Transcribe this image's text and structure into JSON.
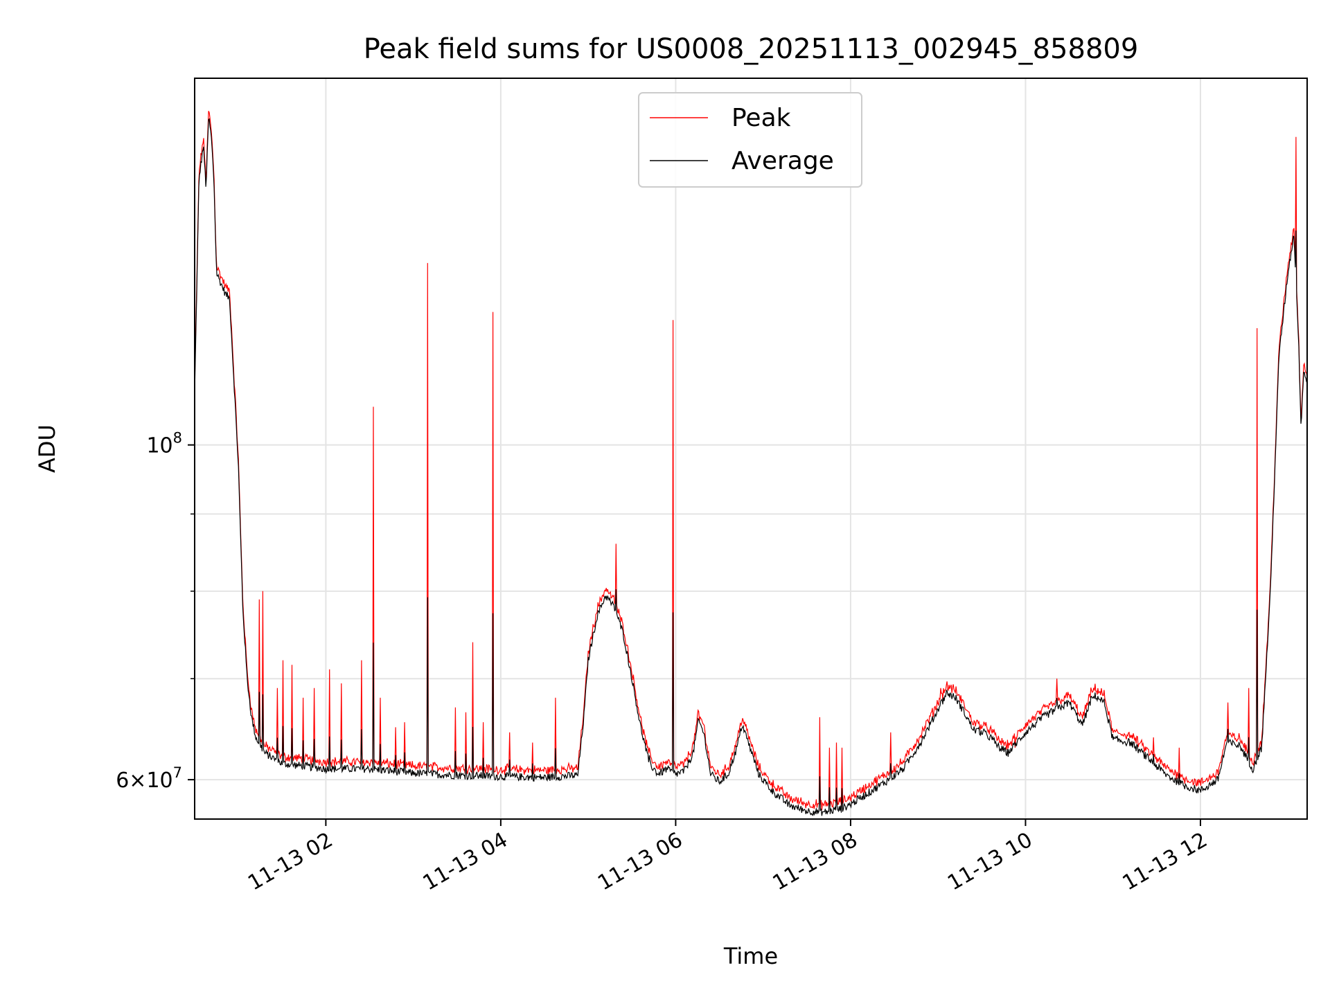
{
  "chart_data": {
    "type": "line",
    "title": "Peak field sums for US0008_20251113_002945_858809",
    "xlabel": "Time",
    "ylabel": "ADU",
    "yscale": "log",
    "ylim": [
      56500000,
      175000000
    ],
    "xlim": [
      0.5,
      13.22
    ],
    "grid": true,
    "legend": {
      "position": "top-center",
      "entries": [
        "Peak",
        "Average"
      ]
    },
    "x_ticks": [
      {
        "value": 2,
        "label": "11-13 02"
      },
      {
        "value": 4,
        "label": "11-13 04"
      },
      {
        "value": 6,
        "label": "11-13 06"
      },
      {
        "value": 8,
        "label": "11-13 08"
      },
      {
        "value": 10,
        "label": "11-13 10"
      },
      {
        "value": 12,
        "label": "11-13 12"
      }
    ],
    "y_ticks": [
      {
        "value": 100000000,
        "base": "10",
        "exp": "8",
        "mantissa": ""
      },
      {
        "value": 60000000,
        "base": "10",
        "exp": "7",
        "mantissa": "6"
      }
    ],
    "y_minor_ticks": [
      70000000,
      80000000,
      90000000
    ],
    "series": [
      {
        "name": "Average",
        "color": "#000000",
        "points": [
          [
            0.5,
            108000000
          ],
          [
            0.55,
            150000000
          ],
          [
            0.6,
            158000000
          ],
          [
            0.63,
            148000000
          ],
          [
            0.66,
            165000000
          ],
          [
            0.69,
            160000000
          ],
          [
            0.72,
            150000000
          ],
          [
            0.75,
            130000000
          ],
          [
            0.8,
            128000000
          ],
          [
            0.85,
            126000000
          ],
          [
            0.9,
            125000000
          ],
          [
            0.95,
            110000000
          ],
          [
            1.0,
            97000000
          ],
          [
            1.05,
            78000000
          ],
          [
            1.1,
            70000000
          ],
          [
            1.15,
            66000000
          ],
          [
            1.2,
            64000000
          ],
          [
            1.3,
            62500000
          ],
          [
            1.5,
            61500000
          ],
          [
            2.0,
            61000000
          ],
          [
            2.5,
            61000000
          ],
          [
            3.0,
            60600000
          ],
          [
            3.5,
            60400000
          ],
          [
            4.0,
            60300000
          ],
          [
            4.5,
            60200000
          ],
          [
            4.88,
            60400000
          ],
          [
            4.95,
            66000000
          ],
          [
            5.0,
            72000000
          ],
          [
            5.1,
            77000000
          ],
          [
            5.2,
            79500000
          ],
          [
            5.3,
            78000000
          ],
          [
            5.4,
            75000000
          ],
          [
            5.5,
            70000000
          ],
          [
            5.6,
            65000000
          ],
          [
            5.7,
            61500000
          ],
          [
            5.8,
            60500000
          ],
          [
            5.9,
            61000000
          ],
          [
            6.0,
            60500000
          ],
          [
            6.1,
            60800000
          ],
          [
            6.2,
            62500000
          ],
          [
            6.26,
            65700000
          ],
          [
            6.32,
            64500000
          ],
          [
            6.4,
            60500000
          ],
          [
            6.5,
            59800000
          ],
          [
            6.6,
            60500000
          ],
          [
            6.7,
            63000000
          ],
          [
            6.76,
            65300000
          ],
          [
            6.85,
            63000000
          ],
          [
            6.95,
            60500000
          ],
          [
            7.1,
            59000000
          ],
          [
            7.3,
            57700000
          ],
          [
            7.5,
            57200000
          ],
          [
            7.7,
            57100000
          ],
          [
            7.9,
            57400000
          ],
          [
            8.0,
            57800000
          ],
          [
            8.2,
            58800000
          ],
          [
            8.4,
            59800000
          ],
          [
            8.6,
            61000000
          ],
          [
            8.8,
            63500000
          ],
          [
            9.0,
            66800000
          ],
          [
            9.1,
            68500000
          ],
          [
            9.2,
            68000000
          ],
          [
            9.3,
            66500000
          ],
          [
            9.4,
            64800000
          ],
          [
            9.5,
            64500000
          ],
          [
            9.6,
            64000000
          ],
          [
            9.7,
            63000000
          ],
          [
            9.8,
            62500000
          ],
          [
            10.0,
            64500000
          ],
          [
            10.2,
            66000000
          ],
          [
            10.35,
            66800000
          ],
          [
            10.5,
            67500000
          ],
          [
            10.65,
            65200000
          ],
          [
            10.75,
            67800000
          ],
          [
            10.8,
            68200000
          ],
          [
            10.9,
            67500000
          ],
          [
            11.0,
            63800000
          ],
          [
            11.2,
            63500000
          ],
          [
            11.4,
            62000000
          ],
          [
            11.6,
            60500000
          ],
          [
            11.8,
            59500000
          ],
          [
            12.0,
            59000000
          ],
          [
            12.2,
            60000000
          ],
          [
            12.3,
            63500000
          ],
          [
            12.45,
            63200000
          ],
          [
            12.6,
            61000000
          ],
          [
            12.7,
            63000000
          ],
          [
            12.8,
            80000000
          ],
          [
            12.9,
            115000000
          ],
          [
            13.0,
            130000000
          ],
          [
            13.07,
            138000000
          ],
          [
            13.12,
            118000000
          ],
          [
            13.15,
            103000000
          ],
          [
            13.18,
            112000000
          ],
          [
            13.22,
            110000000
          ]
        ]
      },
      {
        "name": "Peak",
        "color": "#ff0000",
        "offset_ratio": 1.008,
        "spikes": [
          [
            1.24,
            79000000
          ],
          [
            1.28,
            80000000
          ],
          [
            1.45,
            69000000
          ],
          [
            1.51,
            72000000
          ],
          [
            1.61,
            71500000
          ],
          [
            1.74,
            68000000
          ],
          [
            1.87,
            69000000
          ],
          [
            2.04,
            71000000
          ],
          [
            2.18,
            69500000
          ],
          [
            2.41,
            72000000
          ],
          [
            2.54,
            106000000
          ],
          [
            2.62,
            68000000
          ],
          [
            2.8,
            65000000
          ],
          [
            2.9,
            65500000
          ],
          [
            3.16,
            132000000
          ],
          [
            3.48,
            67000000
          ],
          [
            3.6,
            66500000
          ],
          [
            3.68,
            74000000
          ],
          [
            3.8,
            65500000
          ],
          [
            3.91,
            122500000
          ],
          [
            4.1,
            64500000
          ],
          [
            4.36,
            63500000
          ],
          [
            4.63,
            68000000
          ],
          [
            5.32,
            86000000
          ],
          [
            5.7,
            63000000
          ],
          [
            5.97,
            121000000
          ],
          [
            6.27,
            65600000
          ],
          [
            7.65,
            66000000
          ],
          [
            7.76,
            63000000
          ],
          [
            7.84,
            63500000
          ],
          [
            7.9,
            63000000
          ],
          [
            8.46,
            64500000
          ],
          [
            9.03,
            69000000
          ],
          [
            9.52,
            65500000
          ],
          [
            9.88,
            63000000
          ],
          [
            10.36,
            70000000
          ],
          [
            11.46,
            64000000
          ],
          [
            11.76,
            63000000
          ],
          [
            12.31,
            67500000
          ],
          [
            12.55,
            69000000
          ],
          [
            12.65,
            119500000
          ],
          [
            13.09,
            160000000
          ]
        ]
      }
    ]
  }
}
